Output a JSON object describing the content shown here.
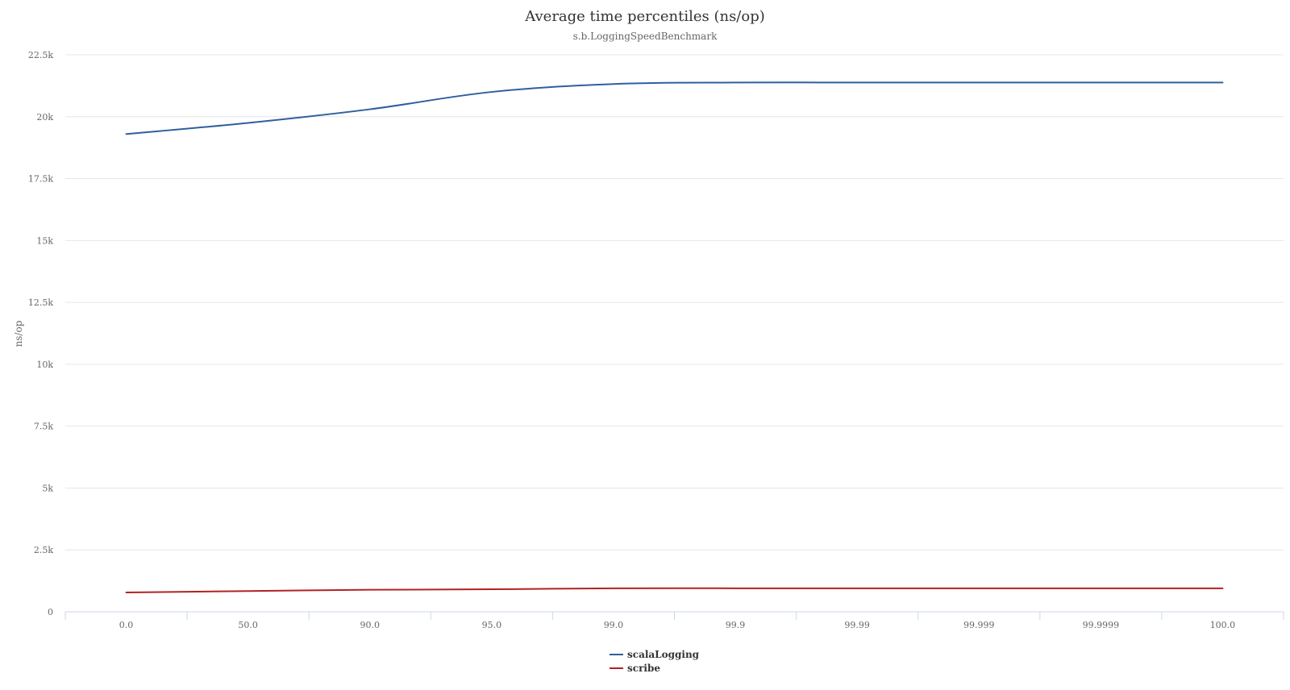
{
  "chart_data": {
    "type": "line",
    "title": "Average time percentiles (ns/op)",
    "subtitle": "s.b.LoggingSpeedBenchmark",
    "xlabel": "",
    "ylabel": "ns/op",
    "categories": [
      "0.0",
      "50.0",
      "90.0",
      "95.0",
      "99.0",
      "99.9",
      "99.99",
      "99.999",
      "99.9999",
      "100.0"
    ],
    "ylim": [
      0,
      22500
    ],
    "yticks": [
      0,
      2500,
      5000,
      7500,
      10000,
      12500,
      15000,
      17500,
      20000,
      22500
    ],
    "ytick_labels": [
      "0",
      "2.5k",
      "5k",
      "7.5k",
      "10k",
      "12.5k",
      "15k",
      "17.5k",
      "20k",
      "22.5k"
    ],
    "grid": true,
    "legend_position": "bottom-center",
    "series": [
      {
        "name": "scalaLogging",
        "color": "#2f5f9e",
        "values": [
          19300,
          19750,
          20300,
          21000,
          21320,
          21380,
          21380,
          21380,
          21380,
          21380
        ]
      },
      {
        "name": "scribe",
        "color": "#b22222",
        "values": [
          780,
          840,
          890,
          910,
          950,
          950,
          950,
          950,
          950,
          950
        ]
      }
    ]
  }
}
